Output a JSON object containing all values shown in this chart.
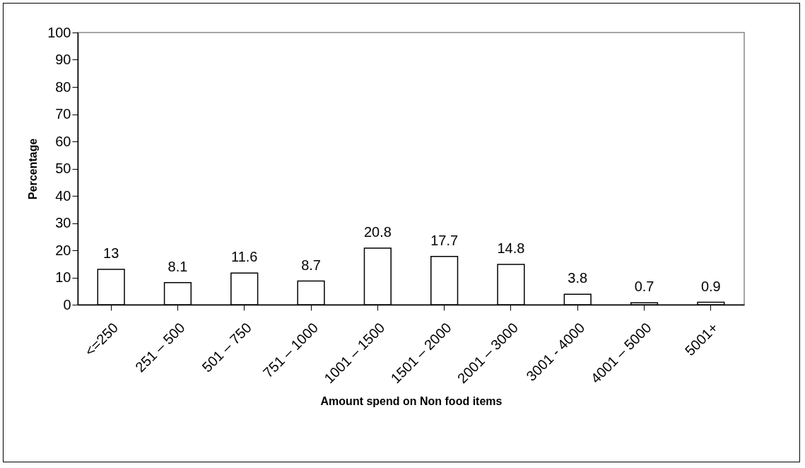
{
  "chart_data": {
    "type": "bar",
    "xlabel": "Amount spend on Non food items",
    "ylabel": "Percentage",
    "categories": [
      "<=250",
      "251 – 500",
      "501 – 750",
      "751 – 1000",
      "1001 – 1500",
      "1501 – 2000",
      "2001 – 3000",
      "3001 - 4000",
      "4001 – 5000",
      "5001+"
    ],
    "values": [
      13,
      8.1,
      11.6,
      8.7,
      20.8,
      17.7,
      14.8,
      3.8,
      0.7,
      0.9
    ],
    "color": "#ffffff",
    "ylim": [
      0,
      100
    ],
    "yticks": [
      0,
      10,
      20,
      30,
      40,
      50,
      60,
      70,
      80,
      90,
      100
    ],
    "grid": false,
    "data_labels": true
  }
}
